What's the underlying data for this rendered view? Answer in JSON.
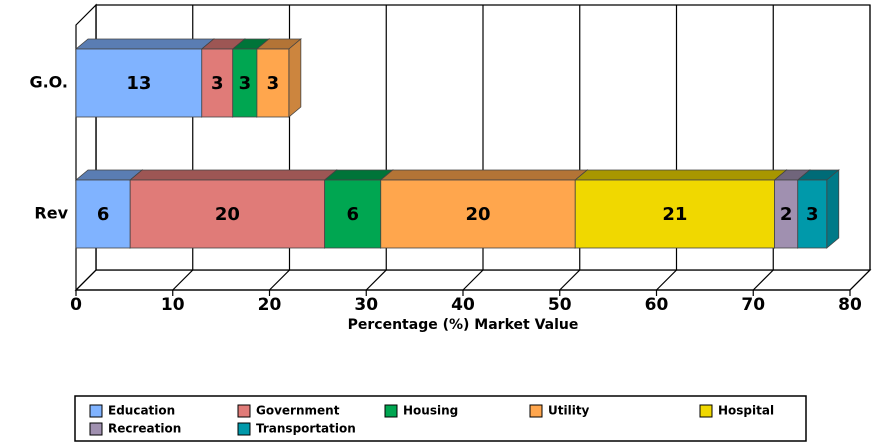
{
  "chart_data": {
    "type": "bar",
    "orientation": "horizontal",
    "stacked": true,
    "three_d": true,
    "xlabel": "Percentage (%) Market Value",
    "categories": [
      "G.O.",
      "Rev"
    ],
    "xlim": [
      0,
      80
    ],
    "xticks": [
      0,
      10,
      20,
      30,
      40,
      50,
      60,
      70,
      80
    ],
    "grid": true,
    "legend": "bottom",
    "series": [
      {
        "name": "Education",
        "color": "#80b3ff",
        "values": [
          13,
          5.6
        ],
        "value_labels": [
          "13",
          "6"
        ]
      },
      {
        "name": "Government",
        "color": "#e07b78",
        "values": [
          3.2,
          20.1
        ],
        "value_labels": [
          "3",
          "20"
        ]
      },
      {
        "name": "Housing",
        "color": "#00a651",
        "values": [
          2.5,
          5.8
        ],
        "value_labels": [
          "3",
          "6"
        ]
      },
      {
        "name": "Utility",
        "color": "#ffa64d",
        "values": [
          3.3,
          20.1
        ],
        "value_labels": [
          "3",
          "20"
        ]
      },
      {
        "name": "Hospital",
        "color": "#f0d800",
        "values": [
          null,
          20.6
        ],
        "value_labels": [
          null,
          "21"
        ]
      },
      {
        "name": "Recreation",
        "color": "#a090b0",
        "values": [
          null,
          2.4
        ],
        "value_labels": [
          null,
          "2"
        ]
      },
      {
        "name": "Transportation",
        "color": "#0099aa",
        "values": [
          null,
          3.0
        ],
        "value_labels": [
          null,
          "3"
        ]
      }
    ]
  }
}
